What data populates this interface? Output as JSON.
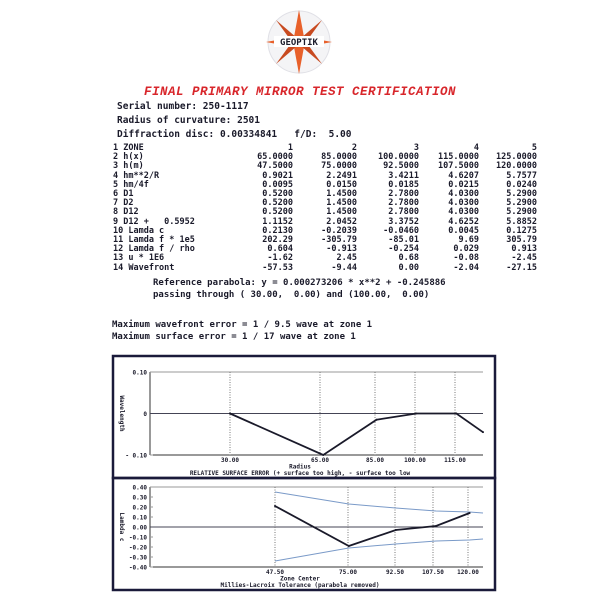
{
  "logo": {
    "text": "GEOPTIK",
    "colors": [
      "#e8602a",
      "#3a4a6a"
    ]
  },
  "title": "FINAL PRIMARY MIRROR TEST CERTIFICATION",
  "header": {
    "serial": "Serial number: 250-1117",
    "radius": "Radius of curvature: 2501",
    "diffraction": "Diffraction disc: 0.00334841   f/D:  5.00"
  },
  "table": {
    "rows": [
      [
        "1 ZONE",
        "1",
        "2",
        "3",
        "4",
        "5"
      ],
      [
        "2 h(x)",
        "65.0000",
        "85.0000",
        "100.0000",
        "115.0000",
        "125.0000"
      ],
      [
        "3 h(m)",
        "47.5000",
        "75.0000",
        "92.5000",
        "107.5000",
        "120.0000"
      ],
      [
        "4 hm**2/R",
        "0.9021",
        "2.2491",
        "3.4211",
        "4.6207",
        "5.7577"
      ],
      [
        "5 hm/4f",
        "0.0095",
        "0.0150",
        "0.0185",
        "0.0215",
        "0.0240"
      ],
      [
        "6 D1",
        "0.5200",
        "1.4500",
        "2.7800",
        "4.0300",
        "5.2900"
      ],
      [
        "7 D2",
        "0.5200",
        "1.4500",
        "2.7800",
        "4.0300",
        "5.2900"
      ],
      [
        "8 D12",
        "0.5200",
        "1.4500",
        "2.7800",
        "4.0300",
        "5.2900"
      ],
      [
        "9 D12 +   0.5952",
        "1.1152",
        "2.0452",
        "3.3752",
        "4.6252",
        "5.8852"
      ],
      [
        "10 Lamda c",
        "0.2130",
        "-0.2039",
        "-0.0460",
        "0.0045",
        "0.1275"
      ],
      [
        "11 Lamda f * 1e5",
        "202.29",
        "-305.79",
        "-85.01",
        "9.69",
        "305.79"
      ],
      [
        "12 Lamda f / rho",
        "0.604",
        "-0.913",
        "-0.254",
        "0.029",
        "0.913"
      ],
      [
        "13 u * 1E6",
        "-1.62",
        "2.45",
        "0.68",
        "-0.08",
        "-2.45"
      ],
      [
        "14 Wavefront",
        "-57.53",
        "-9.44",
        "0.00",
        "-2.04",
        "-27.15"
      ]
    ]
  },
  "reference": "Reference parabola: y = 0.000273206 * x**2 + -0.245886",
  "passing": "passing through ( 30.00,  0.00) and (100.00,  0.00)",
  "max_wavefront": "Maximum wavefront error = 1 / 9.5 wave at zone 1",
  "max_surface": "Maximum surface error = 1 / 17 wave at zone 1",
  "chart_data": [
    {
      "type": "line",
      "ylabel": "Wavelength",
      "xlabel": "Radius",
      "title": "RELATIVE SURFACE ERROR (+ surface too high, - surface too low",
      "ylim": [
        -0.1,
        0.1
      ],
      "yticks": [
        "0.10",
        "0",
        "- 0.10"
      ],
      "xticks": [
        "30.00",
        "65.00",
        "85.00",
        "100.00",
        "115.00"
      ],
      "x": [
        30,
        65,
        85,
        100,
        115,
        125
      ],
      "y": [
        0,
        -0.1,
        -0.015,
        0,
        0,
        -0.045
      ],
      "grid": true
    },
    {
      "type": "line",
      "ylabel": "Lambda c",
      "xlabel": "Zone Center",
      "title": "Millies-Lacroix Tolerance (parabola removed)",
      "ylim": [
        -0.4,
        0.4
      ],
      "yticks": [
        "0.40",
        "0.30",
        "0.20",
        "0.10",
        "0.00",
        "-0.10",
        "-0.20",
        "-0.30",
        "-0.40"
      ],
      "xticks": [
        "47.50",
        "75.00",
        "92.50",
        "107.50",
        "120.00"
      ],
      "x": [
        47.5,
        75,
        92.5,
        107.5,
        120
      ],
      "y": [
        0.21,
        -0.19,
        -0.03,
        0.01,
        0.14
      ],
      "tolerance_x": [
        47.5,
        75,
        92.5,
        107.5,
        120,
        125
      ],
      "tolerance_upper": [
        0.35,
        0.23,
        0.19,
        0.16,
        0.15,
        0.14
      ],
      "tolerance_lower": [
        -0.34,
        -0.21,
        -0.17,
        -0.14,
        -0.13,
        -0.12
      ],
      "colors": {
        "data": "#1a1a2a",
        "tolerance": "#7a9ac8"
      },
      "grid": true
    }
  ]
}
